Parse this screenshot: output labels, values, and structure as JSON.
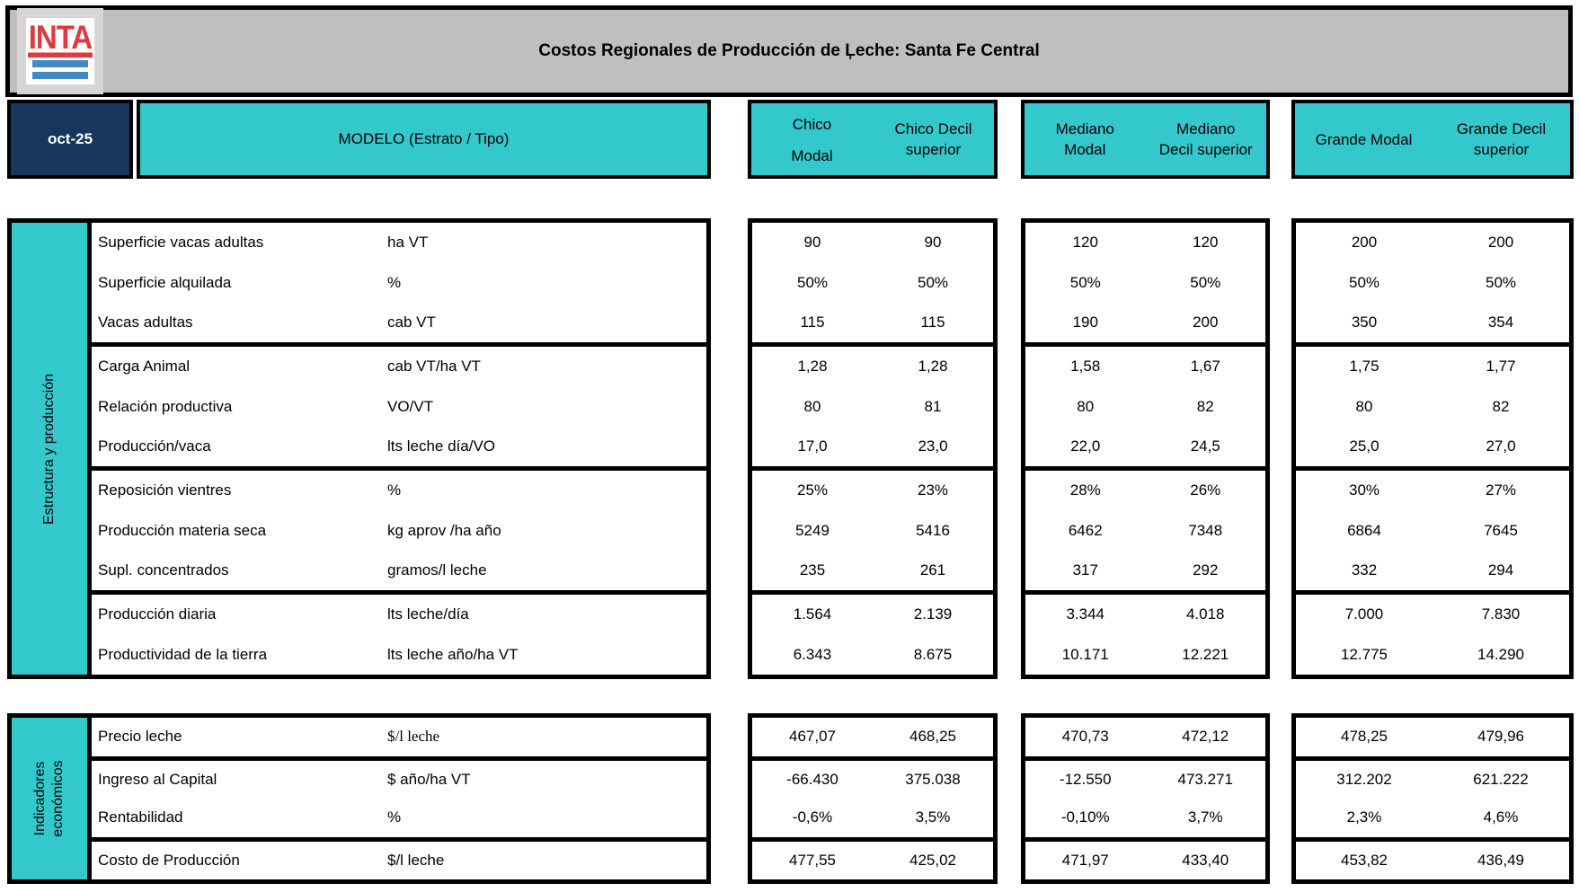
{
  "colors": {
    "teal": "#33c9cc",
    "navy": "#16365c",
    "titlebar_gray": "#bfbfbf",
    "logo_red": "#e0393e",
    "logo_blue": "#4288c5",
    "border_black": "#000000"
  },
  "logo": {
    "text": "INTA"
  },
  "title_bar": {
    "title": "Costos Regionales de Producción de Ļeche: Santa Fe Central"
  },
  "header_row": {
    "date": "oct-25",
    "model_label": "MODELO (Estrato / Tipo)",
    "groups": [
      {
        "columns": [
          {
            "lines": [
              "Chico",
              "Modal"
            ]
          },
          {
            "lines": [
              "Chico Decil",
              "superior"
            ]
          }
        ]
      },
      {
        "columns": [
          {
            "lines": [
              "Mediano",
              "Modal"
            ]
          },
          {
            "lines": [
              "Mediano",
              "Decil superior"
            ]
          }
        ]
      },
      {
        "columns": [
          {
            "lines": [
              "Grande Modal"
            ]
          },
          {
            "lines": [
              "Grande Decil",
              "superior"
            ]
          }
        ]
      }
    ]
  },
  "sections": [
    {
      "sidebar_lines": [
        "Estructura y producción"
      ],
      "row_groups": [
        {
          "rows": [
            {
              "label": "Superficie vacas adultas",
              "unit": "ha VT",
              "values": [
                "90",
                "90",
                "120",
                "120",
                "200",
                "200"
              ]
            },
            {
              "label": "Superficie alquilada",
              "unit": "%",
              "values": [
                "50%",
                "50%",
                "50%",
                "50%",
                "50%",
                "50%"
              ]
            },
            {
              "label": "Vacas adultas",
              "unit": "cab VT",
              "values": [
                "115",
                "115",
                "190",
                "200",
                "350",
                "354"
              ]
            }
          ]
        },
        {
          "rows": [
            {
              "label": "Carga Animal",
              "unit": "cab VT/ha VT",
              "values": [
                "1,28",
                "1,28",
                "1,58",
                "1,67",
                "1,75",
                "1,77"
              ]
            },
            {
              "label": "Relación productiva",
              "unit": "VO/VT",
              "values": [
                "80",
                "81",
                "80",
                "82",
                "80",
                "82"
              ]
            },
            {
              "label": "Producción/vaca",
              "unit": "lts leche día/VO",
              "values": [
                "17,0",
                "23,0",
                "22,0",
                "24,5",
                "25,0",
                "27,0"
              ]
            }
          ]
        },
        {
          "rows": [
            {
              "label": "Reposición vientres",
              "unit": "%",
              "values": [
                "25%",
                "23%",
                "28%",
                "26%",
                "30%",
                "27%"
              ]
            },
            {
              "label": "Producción materia seca",
              "unit": "kg aprov /ha año",
              "values": [
                "5249",
                "5416",
                "6462",
                "7348",
                "6864",
                "7645"
              ]
            },
            {
              "label": "Supl. concentrados",
              "unit": "gramos/l leche",
              "values": [
                "235",
                "261",
                "317",
                "292",
                "332",
                "294"
              ]
            }
          ]
        },
        {
          "rows": [
            {
              "label": "Producción diaria",
              "unit": "lts leche/día",
              "values": [
                "1.564",
                "2.139",
                "3.344",
                "4.018",
                "7.000",
                "7.830"
              ]
            },
            {
              "label": "Productividad de la tierra",
              "unit": "lts leche año/ha VT",
              "values": [
                "6.343",
                "8.675",
                "10.171",
                "12.221",
                "12.775",
                "14.290"
              ]
            }
          ]
        }
      ]
    },
    {
      "sidebar_lines": [
        "Indicadores",
        "económicos"
      ],
      "row_groups": [
        {
          "rows": [
            {
              "label": "Precio leche",
              "unit": "$/l leche",
              "unit_style": "serif",
              "values": [
                "467,07",
                "468,25",
                "470,73",
                "472,12",
                "478,25",
                "479,96"
              ]
            }
          ]
        },
        {
          "rows": [
            {
              "label": "Ingreso al Capital",
              "unit": "$ año/ha VT",
              "values": [
                "-66.430",
                "375.038",
                "-12.550",
                "473.271",
                "312.202",
                "621.222"
              ]
            },
            {
              "label": "Rentabilidad",
              "unit": "%",
              "values": [
                "-0,6%",
                "3,5%",
                "-0,10%",
                "3,7%",
                "2,3%",
                "4,6%"
              ]
            }
          ]
        },
        {
          "rows": [
            {
              "label": "Costo de Producción",
              "unit": "$/l leche",
              "values": [
                "477,55",
                "425,02",
                "471,97",
                "433,40",
                "453,82",
                "436,49"
              ]
            }
          ]
        }
      ]
    }
  ]
}
